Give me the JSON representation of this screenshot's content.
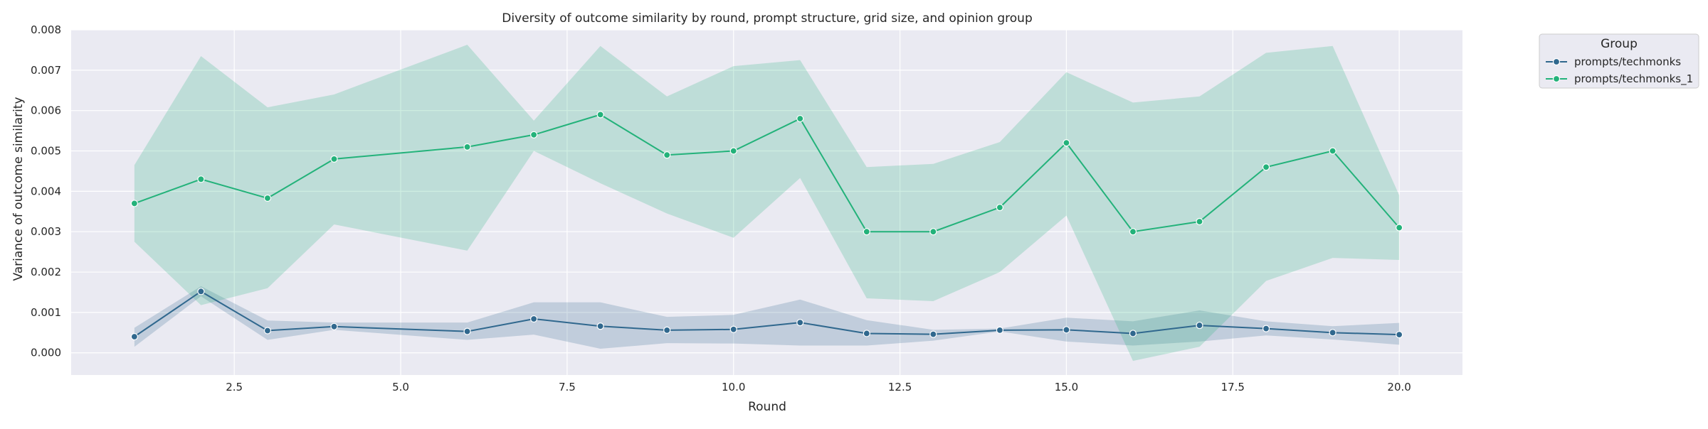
{
  "chart_data": {
    "type": "line",
    "title": "Diversity of outcome similarity by round, prompt structure, grid size, and opinion group",
    "xlabel": "Round",
    "ylabel": "Variance of outcome similarity",
    "xlim": [
      0.05,
      20.95
    ],
    "ylim": [
      -0.00055,
      0.008
    ],
    "x_ticks": [
      2.5,
      5.0,
      7.5,
      10.0,
      12.5,
      15.0,
      17.5,
      20.0
    ],
    "x_tick_labels": [
      "2.5",
      "5.0",
      "7.5",
      "10.0",
      "12.5",
      "15.0",
      "17.5",
      "20.0"
    ],
    "y_ticks": [
      0.0,
      0.001,
      0.002,
      0.003,
      0.004,
      0.005,
      0.006,
      0.007,
      0.008
    ],
    "y_tick_labels": [
      "0.000",
      "0.001",
      "0.002",
      "0.003",
      "0.004",
      "0.005",
      "0.006",
      "0.007",
      "0.008"
    ],
    "grid": true,
    "legend": {
      "title": "Group",
      "placement": "outside-top-right"
    },
    "colors": {
      "plot_background": "#eaeaf2",
      "grid": "#ffffff",
      "legend_background": "#eaeaf2",
      "legend_border": "#cccccc"
    },
    "series": [
      {
        "name": "prompts/techmonks",
        "color": "#30688e",
        "marker": "circle",
        "x": [
          1,
          2,
          3,
          4,
          6,
          7,
          8,
          9,
          10,
          11,
          12,
          13,
          14,
          15,
          16,
          17,
          18,
          19,
          20
        ],
        "y": [
          0.0004,
          0.00152,
          0.00055,
          0.00065,
          0.00053,
          0.00084,
          0.00066,
          0.00056,
          0.00058,
          0.00075,
          0.00048,
          0.00046,
          0.00056,
          0.00057,
          0.00048,
          0.00068,
          0.0006,
          0.0005,
          0.00045
        ],
        "ci_lower": [
          0.00015,
          0.0014,
          0.00032,
          0.00057,
          0.00032,
          0.00045,
          0.0001,
          0.00024,
          0.00023,
          0.00018,
          0.00018,
          0.0003,
          0.00053,
          0.00028,
          0.00018,
          0.00028,
          0.00043,
          0.00033,
          0.0002
        ],
        "ci_upper": [
          0.00062,
          0.00165,
          0.0008,
          0.00075,
          0.00075,
          0.00125,
          0.00125,
          0.00089,
          0.00094,
          0.00132,
          0.00081,
          0.00057,
          0.0006,
          0.00087,
          0.00078,
          0.00105,
          0.00078,
          0.00066,
          0.00074
        ]
      },
      {
        "name": "prompts/techmonks_1",
        "color": "#23b27a",
        "marker": "circle",
        "x": [
          1,
          2,
          3,
          4,
          6,
          7,
          8,
          9,
          10,
          11,
          12,
          13,
          14,
          15,
          16,
          17,
          18,
          19,
          20
        ],
        "y": [
          0.0037,
          0.0043,
          0.00383,
          0.0048,
          0.0051,
          0.0054,
          0.0059,
          0.0049,
          0.005,
          0.0058,
          0.003,
          0.003,
          0.0036,
          0.0052,
          0.003,
          0.00325,
          0.0046,
          0.005,
          0.0031
        ],
        "ci_lower": [
          0.00275,
          0.00118,
          0.0016,
          0.00318,
          0.00253,
          0.005,
          0.0042,
          0.00345,
          0.00285,
          0.00433,
          0.00135,
          0.00128,
          0.002,
          0.0034,
          -0.0002,
          0.00015,
          0.00178,
          0.00235,
          0.0023
        ],
        "ci_upper": [
          0.00465,
          0.00735,
          0.00608,
          0.0064,
          0.00763,
          0.00575,
          0.0076,
          0.00635,
          0.0071,
          0.00725,
          0.0046,
          0.00468,
          0.00522,
          0.00695,
          0.0062,
          0.00635,
          0.00743,
          0.0076,
          0.0039
        ]
      }
    ]
  }
}
